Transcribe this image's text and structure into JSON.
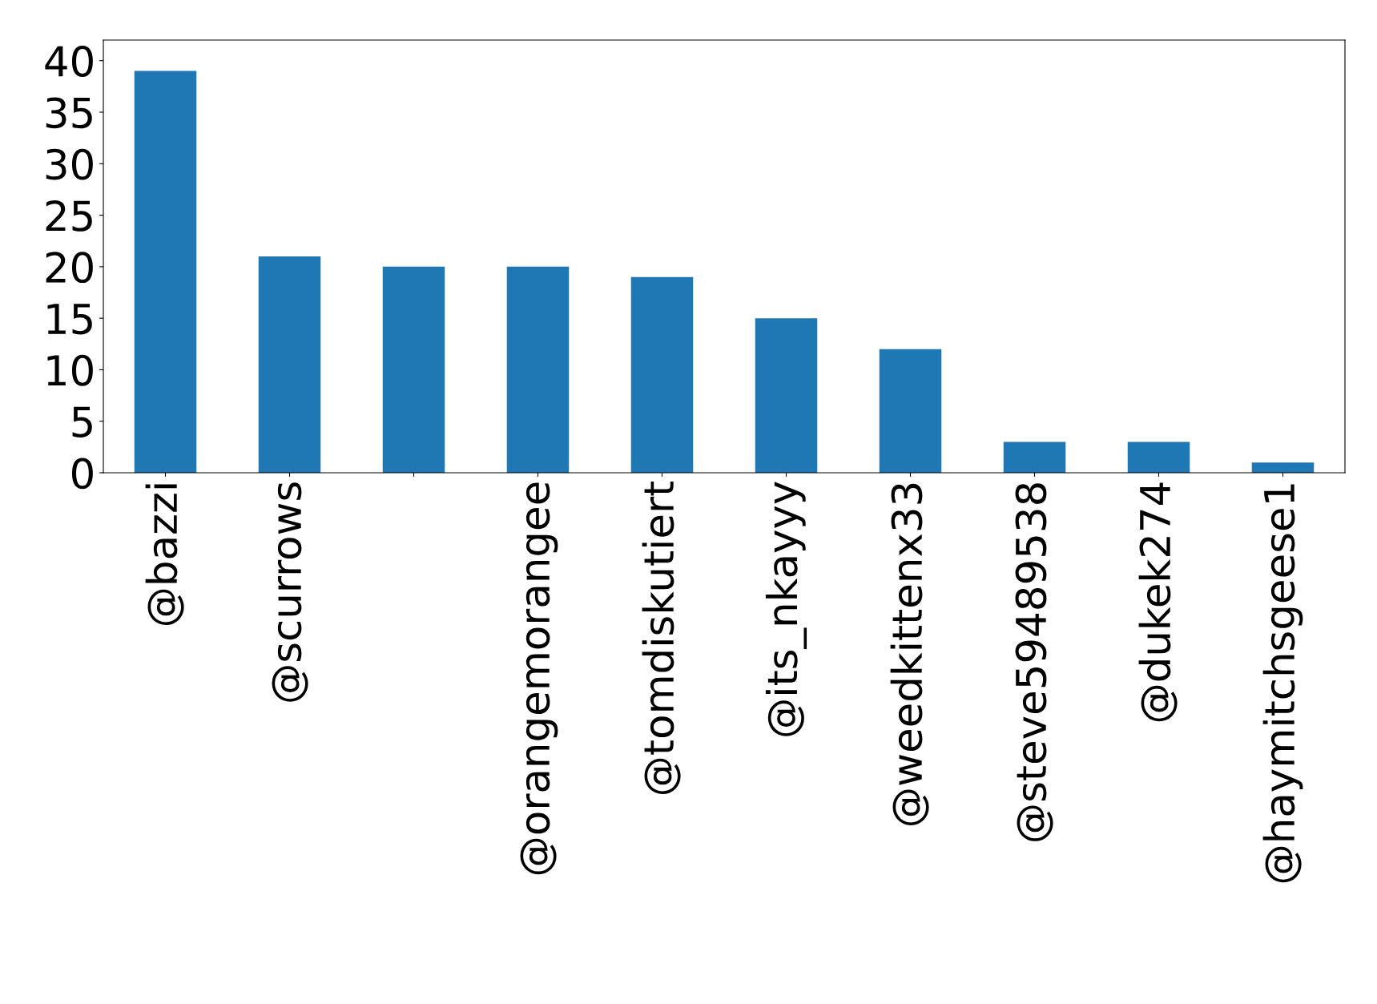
{
  "chart_data": {
    "type": "bar",
    "categories": [
      "@bazzi",
      "@scurrows",
      null,
      "@orangemorangee",
      "@tomdiskutiert",
      "@its_nkayyy",
      "@weedkittenx33",
      "@steve59489538",
      "@dukek274",
      "@haymitchsgeese1"
    ],
    "values": [
      39,
      21,
      20,
      20,
      19,
      15,
      12,
      3,
      3,
      1
    ],
    "color": "#1f77b4",
    "ylim": [
      0,
      42
    ],
    "yticks": [
      0,
      5,
      10,
      15,
      20,
      25,
      30,
      35,
      40
    ],
    "grid": false,
    "legend": false
  }
}
